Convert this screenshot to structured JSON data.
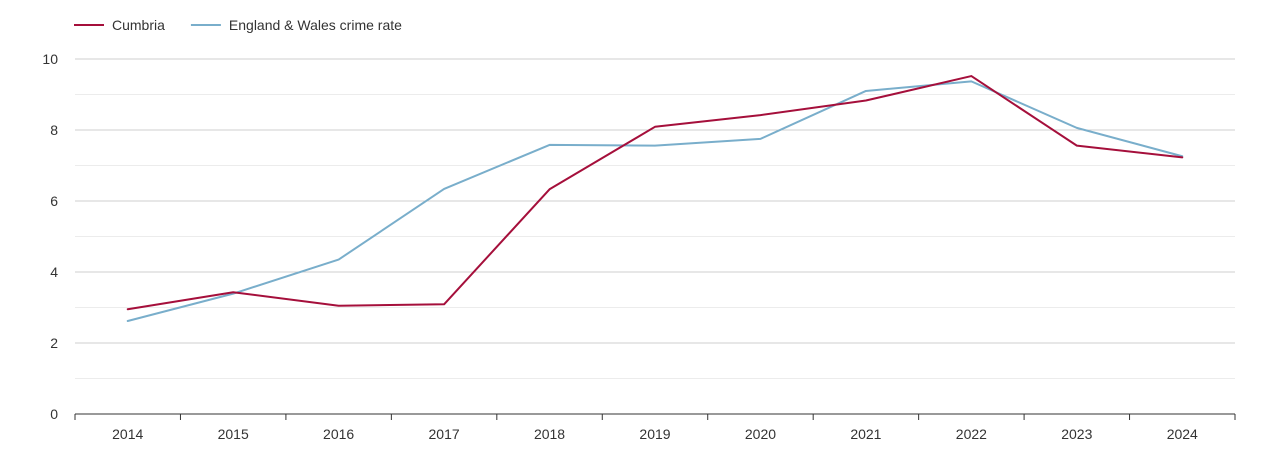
{
  "chart_data": {
    "type": "line",
    "title": "",
    "xlabel": "",
    "ylabel": "",
    "categories": [
      "2014",
      "2015",
      "2016",
      "2017",
      "2018",
      "2019",
      "2020",
      "2021",
      "2022",
      "2023",
      "2024"
    ],
    "ylim": [
      0,
      10
    ],
    "yticks": [
      0,
      2,
      4,
      6,
      8,
      10
    ],
    "grid": true,
    "legend_position": "top-left",
    "series": [
      {
        "name": "Cumbria",
        "color": "#a50f3b",
        "values": [
          2.95,
          3.43,
          3.05,
          3.09,
          6.33,
          8.09,
          8.42,
          8.83,
          9.52,
          7.56,
          7.23
        ]
      },
      {
        "name": "England & Wales crime rate",
        "color": "#79aecb",
        "values": [
          2.62,
          3.39,
          4.35,
          6.34,
          7.58,
          7.56,
          7.75,
          9.1,
          9.37,
          8.06,
          7.26
        ]
      }
    ]
  }
}
